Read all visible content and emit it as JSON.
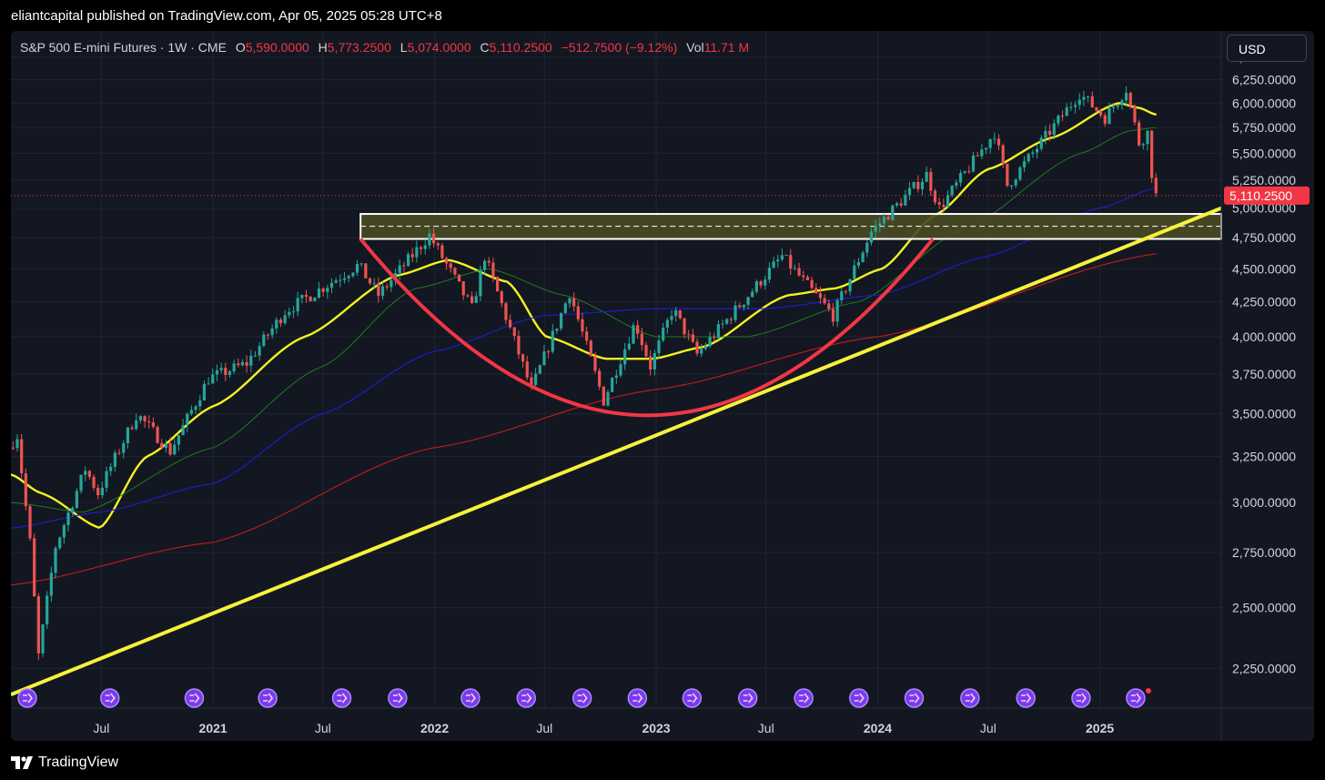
{
  "header": {
    "publisher_line": "eliantcapital published on TradingView.com, Apr 05, 2025 05:28 UTC+8"
  },
  "legend": {
    "symbol": "S&P 500 E-mini Futures · 1W · CME",
    "open_label": "O",
    "open": "5,590.0000",
    "high_label": "H",
    "high": "5,773.2500",
    "low_label": "L",
    "low": "5,074.0000",
    "close_label": "C",
    "close": "5,110.2500",
    "change": "−512.7500 (−9.12%)",
    "vol_label": "Vol",
    "vol": "11.71 M"
  },
  "currency": "USD",
  "footer": {
    "brand": "TradingView"
  },
  "colors": {
    "background": "#131722",
    "grid": "#1f2431",
    "up": "#26a69a",
    "down": "#ef5350",
    "sma20": "#f3f321",
    "sma50": "#1f7a1f",
    "sma100": "#1d1dc4",
    "sma200": "#b71c1c",
    "trendline": "#f7f23a",
    "cup": "#f23645",
    "zone_fill": "#4a4a22",
    "price_tag": "#f23645"
  },
  "chart_data": {
    "type": "candlestick",
    "timeframe": "1W",
    "y_scale": "log",
    "ylim": [
      2100,
      6800
    ],
    "xlim": [
      "2020-02-03",
      "2025-07-20"
    ],
    "y_ticks": [
      "6,500.0000",
      "6,250.0000",
      "6,000.0000",
      "5,750.0000",
      "5,500.0000",
      "5,250.0000",
      "5,000.0000",
      "4,750.0000",
      "4,500.0000",
      "4,250.0000",
      "4,000.0000",
      "3,750.0000",
      "3,500.0000",
      "3,250.0000",
      "3,000.0000",
      "2,750.0000",
      "2,500.0000",
      "2,250.0000"
    ],
    "x_ticks": [
      {
        "label": "Jul",
        "date": "2020-07-01",
        "bold": false
      },
      {
        "label": "2021",
        "date": "2021-01-01",
        "bold": true
      },
      {
        "label": "Jul",
        "date": "2021-07-01",
        "bold": false
      },
      {
        "label": "2022",
        "date": "2022-01-01",
        "bold": true
      },
      {
        "label": "Jul",
        "date": "2022-07-01",
        "bold": false
      },
      {
        "label": "2023",
        "date": "2023-01-01",
        "bold": true
      },
      {
        "label": "Jul",
        "date": "2023-07-01",
        "bold": false
      },
      {
        "label": "2024",
        "date": "2024-01-01",
        "bold": true
      },
      {
        "label": "Jul",
        "date": "2024-07-01",
        "bold": false
      },
      {
        "label": "2025",
        "date": "2025-01-01",
        "bold": true
      }
    ],
    "price_anchors": [
      {
        "date": "2020-02-03",
        "price": 3300
      },
      {
        "date": "2020-02-17",
        "price": 3370
      },
      {
        "date": "2020-03-09",
        "price": 2800
      },
      {
        "date": "2020-03-23",
        "price": 2300
      },
      {
        "date": "2020-04-20",
        "price": 2780
      },
      {
        "date": "2020-06-08",
        "price": 3180
      },
      {
        "date": "2020-06-29",
        "price": 3050
      },
      {
        "date": "2020-09-01",
        "price": 3500
      },
      {
        "date": "2020-10-26",
        "price": 3280
      },
      {
        "date": "2020-12-28",
        "price": 3720
      },
      {
        "date": "2021-03-01",
        "price": 3820
      },
      {
        "date": "2021-05-03",
        "price": 4180
      },
      {
        "date": "2021-09-01",
        "price": 4530
      },
      {
        "date": "2021-10-04",
        "price": 4300
      },
      {
        "date": "2021-12-27",
        "price": 4770
      },
      {
        "date": "2022-03-07",
        "price": 4200
      },
      {
        "date": "2022-03-28",
        "price": 4600
      },
      {
        "date": "2022-06-13",
        "price": 3650
      },
      {
        "date": "2022-08-15",
        "price": 4320
      },
      {
        "date": "2022-10-10",
        "price": 3580
      },
      {
        "date": "2022-12-01",
        "price": 4100
      },
      {
        "date": "2022-12-26",
        "price": 3800
      },
      {
        "date": "2023-02-01",
        "price": 4200
      },
      {
        "date": "2023-03-13",
        "price": 3880
      },
      {
        "date": "2023-07-31",
        "price": 4600
      },
      {
        "date": "2023-10-23",
        "price": 4150
      },
      {
        "date": "2023-12-25",
        "price": 4800
      },
      {
        "date": "2024-03-25",
        "price": 5300
      },
      {
        "date": "2024-04-15",
        "price": 5000
      },
      {
        "date": "2024-07-15",
        "price": 5700
      },
      {
        "date": "2024-08-05",
        "price": 5200
      },
      {
        "date": "2024-12-02",
        "price": 6100
      },
      {
        "date": "2025-01-13",
        "price": 5850
      },
      {
        "date": "2025-02-17",
        "price": 6150
      },
      {
        "date": "2025-03-10",
        "price": 5600
      },
      {
        "date": "2025-03-24",
        "price": 5700
      },
      {
        "date": "2025-04-04",
        "price": 5110
      }
    ],
    "moving_averages": [
      {
        "key": "sma20",
        "points": [
          [
            "2020-02-03",
            3150
          ],
          [
            "2020-03-23",
            3050
          ],
          [
            "2020-06-29",
            2870
          ],
          [
            "2020-09-14",
            3250
          ],
          [
            "2021-01-04",
            3550
          ],
          [
            "2021-06-01",
            4000
          ],
          [
            "2021-11-01",
            4450
          ],
          [
            "2022-01-24",
            4570
          ],
          [
            "2022-05-01",
            4400
          ],
          [
            "2022-07-04",
            4000
          ],
          [
            "2022-10-10",
            3850
          ],
          [
            "2022-12-26",
            3850
          ],
          [
            "2023-03-20",
            3930
          ],
          [
            "2023-08-07",
            4300
          ],
          [
            "2023-10-23",
            4350
          ],
          [
            "2024-01-08",
            4500
          ],
          [
            "2024-04-08",
            4950
          ],
          [
            "2024-07-01",
            5350
          ],
          [
            "2024-10-14",
            5650
          ],
          [
            "2025-02-01",
            6000
          ],
          [
            "2025-03-07",
            5950
          ],
          [
            "2025-04-04",
            5880
          ]
        ]
      },
      {
        "key": "sma50",
        "points": [
          [
            "2020-02-03",
            3000
          ],
          [
            "2020-06-01",
            2950
          ],
          [
            "2021-01-01",
            3300
          ],
          [
            "2021-07-01",
            3800
          ],
          [
            "2021-12-01",
            4350
          ],
          [
            "2022-04-01",
            4500
          ],
          [
            "2022-08-01",
            4300
          ],
          [
            "2023-01-01",
            4000
          ],
          [
            "2023-06-01",
            4000
          ],
          [
            "2023-12-01",
            4250
          ],
          [
            "2024-06-01",
            4850
          ],
          [
            "2024-12-01",
            5500
          ],
          [
            "2025-02-20",
            5720
          ],
          [
            "2025-04-04",
            5750
          ]
        ]
      },
      {
        "key": "sma100",
        "points": [
          [
            "2020-02-03",
            2870
          ],
          [
            "2020-06-29",
            2950
          ],
          [
            "2021-01-01",
            3100
          ],
          [
            "2021-07-01",
            3500
          ],
          [
            "2022-01-01",
            3900
          ],
          [
            "2022-07-01",
            4150
          ],
          [
            "2023-01-01",
            4200
          ],
          [
            "2023-07-01",
            4200
          ],
          [
            "2024-01-01",
            4300
          ],
          [
            "2024-07-01",
            4600
          ],
          [
            "2025-01-01",
            5000
          ],
          [
            "2025-04-04",
            5180
          ]
        ]
      },
      {
        "key": "sma200",
        "points": [
          [
            "2020-02-03",
            2600
          ],
          [
            "2021-01-01",
            2800
          ],
          [
            "2022-01-01",
            3300
          ],
          [
            "2023-01-01",
            3650
          ],
          [
            "2024-01-01",
            4000
          ],
          [
            "2025-04-04",
            4620
          ]
        ]
      }
    ],
    "horizontal_zone": {
      "top": 4950,
      "bottom": 4740,
      "mid": 4845,
      "start": "2021-09-01",
      "end": "2025-07-20"
    },
    "trendline": {
      "p1": {
        "date": "2020-02-03",
        "price": 2150
      },
      "p2": {
        "date": "2025-07-20",
        "price": 5000
      }
    },
    "cup_arc": {
      "left": {
        "date": "2021-09-01",
        "price": 4740
      },
      "bottom": {
        "date": "2022-12-20",
        "price": 3490
      },
      "right": {
        "date": "2024-04-01",
        "price": 4740
      }
    },
    "last_price_line": {
      "price": 5110.25,
      "label": "5,110.2500"
    },
    "event_markers": [
      "2020-03-01",
      "2020-07-15",
      "2020-12-01",
      "2021-04-01",
      "2021-08-01",
      "2021-11-01",
      "2022-03-01",
      "2022-06-01",
      "2022-09-01",
      "2022-12-01",
      "2023-03-01",
      "2023-06-01",
      "2023-09-01",
      "2023-12-01",
      "2024-03-01",
      "2024-06-01",
      "2024-09-01",
      "2024-12-01",
      "2025-03-01"
    ]
  }
}
